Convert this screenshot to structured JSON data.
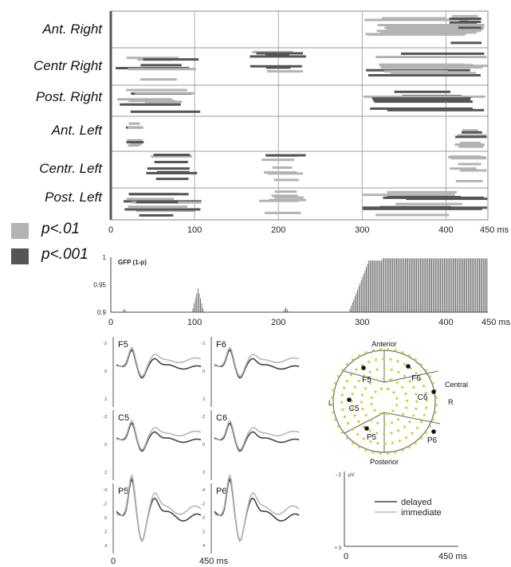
{
  "raster": {
    "regions": [
      "Ant. Right",
      "Centr Right",
      "Post. Right",
      "Ant. Left",
      "Centr. Left",
      "Post. Left"
    ],
    "x_ticks": [
      "0",
      "100",
      "200",
      "300",
      "400",
      "450 ms"
    ],
    "colors": {
      "p01": "#b3b3b3",
      "p001": "#555555"
    }
  },
  "legend": [
    {
      "label": "p<.01",
      "color": "#b3b3b3"
    },
    {
      "label": "p<.001",
      "color": "#555555"
    }
  ],
  "gfp": {
    "title": "GFP (1-p)",
    "y_ticks": [
      "1",
      "0.95",
      "0.9"
    ],
    "x_ticks": [
      "0",
      "100",
      "200",
      "300",
      "400",
      "450 ms"
    ]
  },
  "erp": {
    "electrodes": [
      "F5",
      "F6",
      "C5",
      "C6",
      "P5",
      "P6"
    ],
    "y_ticks_top": [
      "-2",
      "0",
      "2"
    ],
    "y_ticks_bottom": [
      "-4",
      "-2",
      "0",
      "2",
      "4"
    ],
    "x_ticks": [
      "0",
      "450 ms"
    ]
  },
  "head_map": {
    "labels": {
      "anterior": "Anterior",
      "posterior": "Posterior",
      "central": "Central",
      "left": "L",
      "right": "R"
    },
    "electrodes": [
      "F5",
      "F6",
      "C5",
      "C6",
      "P5",
      "P6"
    ],
    "dot_color": "#c8d23c"
  },
  "scale_bar": {
    "unit": "µV",
    "top": "- 2",
    "bottom": "+ 3",
    "x_start": "0",
    "x_end": "450 ms"
  },
  "waveform_legend": [
    {
      "label": "delayed",
      "color": "#444444"
    },
    {
      "label": "immediate",
      "color": "#b8b8b8"
    }
  ],
  "chart_data": [
    {
      "type": "raster",
      "title": "",
      "xlabel": "",
      "xlim": [
        0,
        450
      ],
      "x_unit": "ms",
      "rows": [
        "Ant. Right",
        "Centr Right",
        "Post. Right",
        "Ant. Left",
        "Centr. Left",
        "Post. Left"
      ],
      "significance_levels": [
        "p<.01",
        "p<.001"
      ],
      "periods": [
        {
          "row": "Ant. Right",
          "start": 300,
          "end": 450,
          "level": "p<.01"
        },
        {
          "row": "Ant. Right",
          "start": 400,
          "end": 450,
          "level": "p<.001"
        },
        {
          "row": "Centr Right",
          "start": 5,
          "end": 105,
          "level": "p<.001"
        },
        {
          "row": "Centr Right",
          "start": 165,
          "end": 235,
          "level": "p<.001"
        },
        {
          "row": "Centr Right",
          "start": 300,
          "end": 450,
          "level": "p<.01"
        },
        {
          "row": "Post. Right",
          "start": 5,
          "end": 108,
          "level": "p<.001"
        },
        {
          "row": "Post. Right",
          "start": 300,
          "end": 450,
          "level": "p<.001"
        },
        {
          "row": "Ant. Left",
          "start": 15,
          "end": 40,
          "level": "p<.001"
        },
        {
          "row": "Ant. Left",
          "start": 405,
          "end": 450,
          "level": "p<.01"
        },
        {
          "row": "Centr. Left",
          "start": 40,
          "end": 105,
          "level": "p<.001"
        },
        {
          "row": "Centr. Left",
          "start": 180,
          "end": 235,
          "level": "p<.001"
        },
        {
          "row": "Centr. Left",
          "start": 400,
          "end": 450,
          "level": "p<.01"
        },
        {
          "row": "Post. Left",
          "start": 5,
          "end": 108,
          "level": "p<.001"
        },
        {
          "row": "Post. Left",
          "start": 175,
          "end": 235,
          "level": "p<.01"
        },
        {
          "row": "Post. Left",
          "start": 300,
          "end": 450,
          "level": "p<.001"
        }
      ]
    },
    {
      "type": "bar",
      "title": "GFP (1-p)",
      "xlim": [
        0,
        450
      ],
      "ylim": [
        0.9,
        1.0
      ],
      "x_unit": "ms",
      "segments": [
        {
          "start": 14,
          "end": 18,
          "value": 0.907
        },
        {
          "start": 98,
          "end": 110,
          "value": 0.943
        },
        {
          "start": 206,
          "end": 212,
          "value": 0.909
        },
        {
          "start": 284,
          "end": 450,
          "value": 0.998
        }
      ]
    },
    {
      "type": "line",
      "title": "",
      "xlim": [
        0,
        450
      ],
      "x_unit": "ms",
      "series": [
        {
          "name": "delayed",
          "color": "#444444"
        },
        {
          "name": "immediate",
          "color": "#b8b8b8"
        }
      ],
      "panels": [
        "F5",
        "F6",
        "C5",
        "C6",
        "P5",
        "P6"
      ]
    }
  ]
}
